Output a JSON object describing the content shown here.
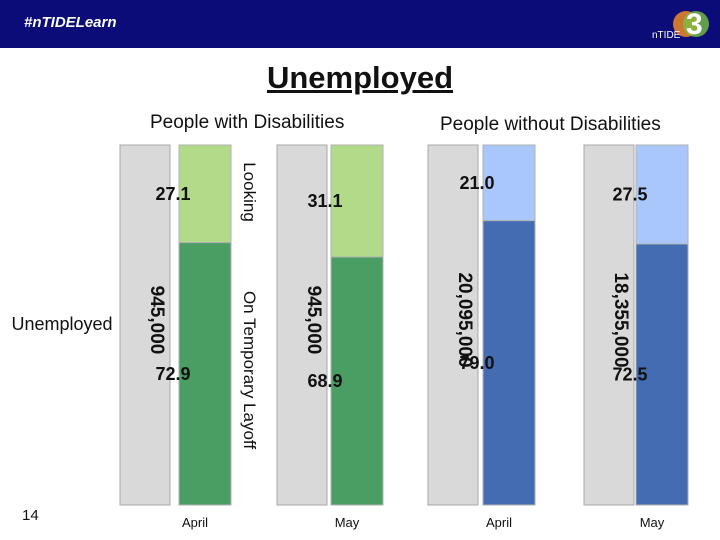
{
  "header": {
    "hashtag": "#nTIDELearn",
    "logo_text": "nTIDE",
    "logo_numeral": "3"
  },
  "slide": {
    "title": "Unemployed",
    "number": "14"
  },
  "chart_data": {
    "type": "bar",
    "title": "Unemployed",
    "groups": [
      "People with Disabilities",
      "People without Disabilities"
    ],
    "categories": [
      "April",
      "May",
      "April",
      "May"
    ],
    "category_groups": [
      0,
      0,
      1,
      1
    ],
    "totals": [
      "945,000",
      "945,000",
      "20,095,000",
      "18,355,000"
    ],
    "series": [
      {
        "name": "On Temporary Layoff",
        "values": [
          72.9,
          68.9,
          79.0,
          72.5
        ],
        "labels": [
          "72.9",
          "68.9",
          "79.0",
          "72.5"
        ]
      },
      {
        "name": "Looking",
        "values": [
          27.1,
          31.1,
          21.0,
          27.5
        ],
        "labels": [
          "27.1",
          "31.1",
          "21.0",
          "27.5"
        ]
      }
    ],
    "row_label": "Unemployed",
    "ylim": [
      0,
      100
    ],
    "colors": {
      "disabilities_layoff": "#4a9e63",
      "disabilities_looking": "#b1db88",
      "no_disabilities_layoff": "#436cb3",
      "no_disabilities_looking": "#a9c7fb",
      "background_bar": "#d9d9d9"
    }
  }
}
